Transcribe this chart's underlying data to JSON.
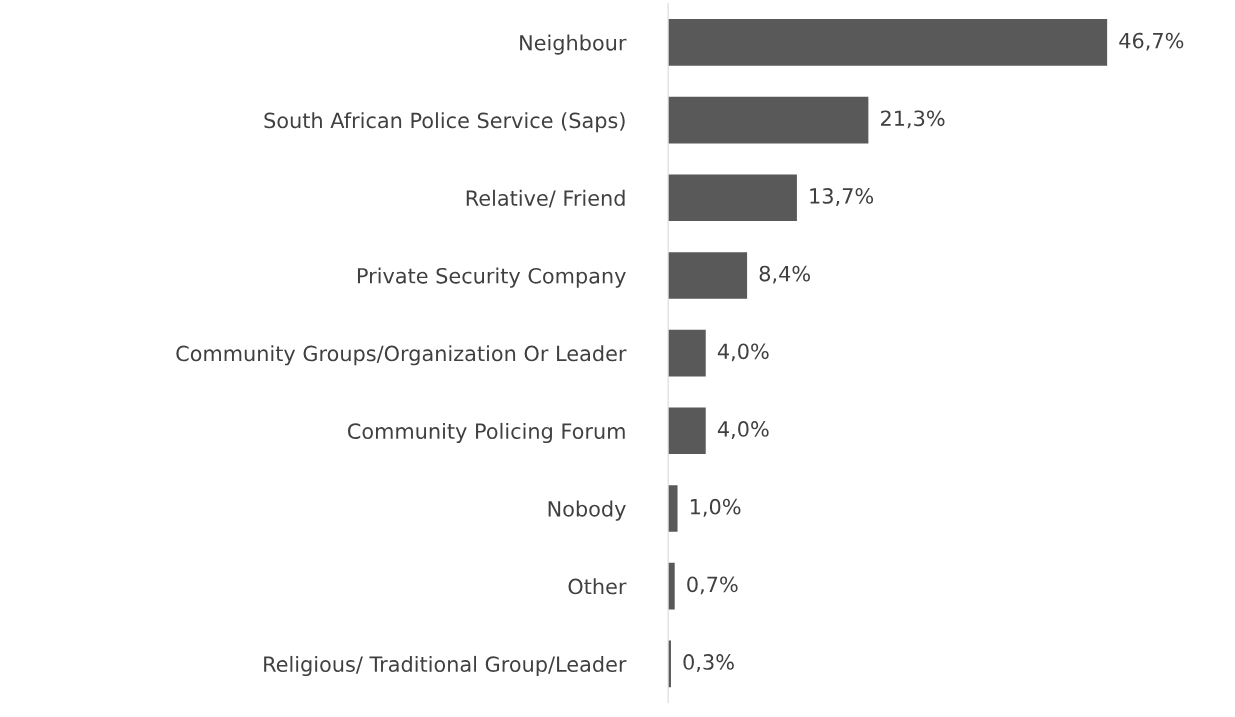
{
  "chart_data": {
    "type": "bar",
    "orientation": "horizontal",
    "categories": [
      "Neighbour",
      "South African Police Service (Saps)",
      "Relative/ Friend",
      "Private Security Company",
      "Community Groups/Organization Or Leader",
      "Community Policing Forum",
      "Nobody",
      "Other",
      "Religious/ Traditional Group/Leader"
    ],
    "values": [
      46.7,
      21.3,
      13.7,
      8.4,
      4.0,
      4.0,
      1.0,
      0.7,
      0.3
    ],
    "value_labels": [
      "46,7%",
      "21,3%",
      "13,7%",
      "8,4%",
      "4,0%",
      "4,0%",
      "1,0%",
      "0,7%",
      "0,3%"
    ],
    "color": "#595959",
    "tick_labels": "y",
    "grid": false,
    "legend": false
  }
}
